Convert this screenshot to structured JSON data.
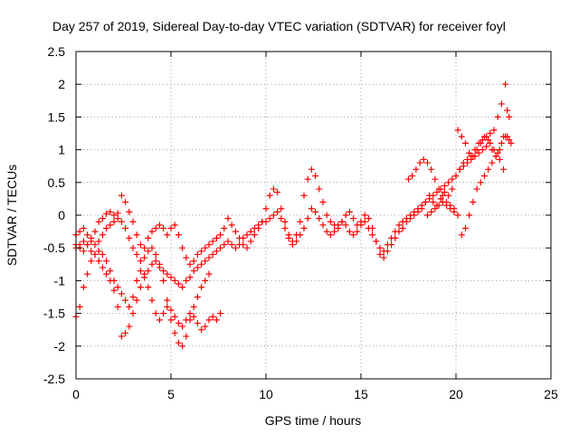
{
  "chart_data": {
    "type": "scatter",
    "title": "Day 257 of 2019, Sidereal Day-to-day VTEC variation (SDTVAR) for receiver foyl",
    "xlabel": "GPS time / hours",
    "ylabel": "SDTVAR / TECUs",
    "xlim": [
      0,
      25
    ],
    "ylim": [
      -2.5,
      2.5
    ],
    "xticks": [
      0,
      5,
      10,
      15,
      20,
      25
    ],
    "yticks": [
      -2.5,
      -2,
      -1.5,
      -1,
      -0.5,
      0,
      0.5,
      1,
      1.5,
      2,
      2.5
    ],
    "grid": true,
    "marker": "plus",
    "color": "#ff0000",
    "series": [
      {
        "x": [
          0.0,
          0.2,
          0.4,
          0.6,
          0.8,
          1.0,
          1.2,
          1.4,
          1.6,
          1.8,
          2.0,
          2.2,
          2.4,
          2.6,
          2.8,
          3.0,
          3.2,
          3.4,
          3.6,
          3.8,
          4.0,
          4.2,
          4.4,
          4.6,
          4.8,
          5.0,
          5.2,
          5.4,
          5.6,
          5.8,
          6.0,
          6.2,
          6.4,
          6.6,
          6.8,
          7.0,
          7.2,
          7.4,
          7.6,
          7.8,
          8.0,
          8.2,
          8.4,
          8.6,
          8.8,
          9.0,
          9.2,
          9.4,
          9.6,
          9.8,
          10.0,
          10.2,
          10.4,
          10.6,
          10.8,
          11.0,
          11.2,
          11.4,
          11.6,
          11.8,
          12.0,
          12.2,
          12.4,
          12.6,
          12.8,
          13.0,
          13.2,
          13.4,
          13.6,
          13.8,
          14.0,
          14.2,
          14.4,
          14.6,
          14.8,
          15.0,
          15.2,
          15.4,
          15.6,
          15.8,
          16.0,
          16.2,
          16.4,
          16.6,
          16.8,
          17.0,
          17.2,
          17.4,
          17.6,
          17.8,
          18.0,
          18.2,
          18.4,
          18.6,
          18.8,
          19.0,
          19.2,
          19.4,
          19.6,
          19.8,
          20.0,
          20.2,
          20.4,
          20.6,
          20.8,
          21.0,
          21.2,
          21.4,
          21.6,
          21.8,
          22.0,
          22.2,
          22.4,
          22.6,
          22.8
        ],
        "y": [
          -0.3,
          -0.25,
          -0.2,
          -0.3,
          -0.4,
          -0.25,
          -0.1,
          -0.05,
          0.02,
          0.05,
          0.0,
          0.03,
          0.3,
          0.2,
          0.05,
          -0.1,
          -0.3,
          -0.45,
          -0.5,
          -0.35,
          -0.25,
          -0.2,
          -0.15,
          -0.2,
          -0.3,
          -0.2,
          -0.15,
          -0.3,
          -0.5,
          -0.65,
          -0.75,
          -0.7,
          -0.6,
          -0.55,
          -0.5,
          -0.45,
          -0.4,
          -0.35,
          -0.3,
          -0.2,
          -0.05,
          -0.15,
          -0.25,
          -0.35,
          -0.45,
          -0.5,
          -0.4,
          -0.3,
          -0.2,
          -0.1,
          0.1,
          0.3,
          0.4,
          0.35,
          0.1,
          -0.1,
          -0.3,
          -0.4,
          -0.3,
          -0.1,
          0.3,
          0.55,
          0.7,
          0.6,
          0.4,
          0.2,
          0.0,
          -0.1,
          -0.15,
          -0.2,
          -0.1,
          0.0,
          0.05,
          -0.05,
          -0.15,
          -0.1,
          0.0,
          -0.05,
          -0.2,
          -0.4,
          -0.6,
          -0.65,
          -0.55,
          -0.45,
          -0.35,
          -0.25,
          -0.2,
          -0.1,
          -0.05,
          0.0,
          0.05,
          0.1,
          0.2,
          0.3,
          0.2,
          0.15,
          0.25,
          0.35,
          0.3,
          0.4,
          0.6,
          0.7,
          0.8,
          0.85,
          0.9,
          1.0,
          1.1,
          1.15,
          1.2,
          1.25,
          1.3,
          1.5,
          1.7,
          2.0,
          1.5
        ]
      },
      {
        "x": [
          0.0,
          0.2,
          0.4,
          0.6,
          0.8,
          1.0,
          1.2,
          1.4,
          1.6,
          1.8,
          2.0,
          2.2,
          2.4,
          2.6,
          2.8,
          3.0,
          3.2,
          3.4,
          3.6,
          3.8,
          4.0,
          4.2,
          4.4,
          4.6,
          4.8,
          5.0,
          5.2,
          5.4,
          5.6,
          5.8,
          6.0,
          6.2,
          6.4,
          6.6,
          6.8,
          7.0,
          7.2,
          7.4,
          7.6,
          7.8,
          8.0,
          8.2,
          8.4,
          8.6,
          8.8,
          9.0,
          9.2,
          9.4,
          9.6,
          9.8,
          10.0,
          10.2,
          10.4,
          10.6,
          10.8,
          11.0,
          11.2,
          11.4,
          11.6,
          11.8,
          12.0,
          12.2,
          12.4,
          12.6,
          12.8,
          13.0,
          13.2,
          13.4,
          13.6,
          13.8,
          14.0,
          14.2,
          14.4,
          14.6,
          14.8,
          15.0,
          15.2,
          15.4,
          15.6,
          15.8,
          16.0,
          16.2,
          16.4,
          16.6,
          16.8,
          17.0,
          17.2,
          17.4,
          17.6,
          17.8,
          18.0,
          18.2,
          18.4,
          18.6,
          18.8,
          19.0,
          19.2,
          19.4,
          19.6,
          19.8,
          20.0,
          20.2,
          20.4,
          20.6,
          20.8,
          21.0,
          21.2,
          21.4,
          21.6,
          21.8,
          22.0,
          22.2,
          22.4,
          22.6,
          22.8
        ],
        "y": [
          -0.45,
          -0.5,
          -0.55,
          -0.45,
          -0.35,
          -0.45,
          -0.4,
          -0.3,
          -0.2,
          -0.15,
          -0.1,
          -0.05,
          -0.1,
          -0.2,
          -0.35,
          -0.5,
          -0.6,
          -0.7,
          -0.65,
          -0.55,
          -0.5,
          -0.6,
          -0.75,
          -0.85,
          -0.9,
          -0.95,
          -1.0,
          -1.05,
          -1.1,
          -1.0,
          -0.95,
          -0.85,
          -0.8,
          -0.75,
          -0.7,
          -0.65,
          -0.6,
          -0.55,
          -0.5,
          -0.45,
          -0.4,
          -0.45,
          -0.5,
          -0.45,
          -0.35,
          -0.3,
          -0.25,
          -0.2,
          -0.15,
          -0.1,
          -0.1,
          -0.05,
          0.0,
          0.05,
          -0.05,
          -0.2,
          -0.35,
          -0.45,
          -0.4,
          -0.3,
          -0.2,
          -0.05,
          0.1,
          0.05,
          -0.05,
          -0.15,
          -0.25,
          -0.3,
          -0.25,
          -0.15,
          -0.1,
          -0.15,
          -0.25,
          -0.3,
          -0.25,
          -0.15,
          -0.1,
          -0.2,
          -0.3,
          -0.4,
          -0.5,
          -0.55,
          -0.45,
          -0.35,
          -0.25,
          -0.15,
          -0.1,
          -0.05,
          0.0,
          0.05,
          0.1,
          0.15,
          0.2,
          0.25,
          0.3,
          0.35,
          0.4,
          0.45,
          0.5,
          0.55,
          0.6,
          0.7,
          0.75,
          0.8,
          0.85,
          0.9,
          0.95,
          1.0,
          1.05,
          1.1,
          1.0,
          0.95,
          1.1,
          1.2,
          1.15
        ]
      },
      {
        "x": [
          0.0,
          0.2,
          0.4,
          0.6,
          0.8,
          1.0,
          1.2,
          1.4,
          1.6,
          1.8,
          2.0,
          2.2,
          2.4,
          2.6,
          2.8,
          3.0,
          3.2,
          3.4,
          3.6,
          3.8,
          4.0,
          4.2,
          4.4,
          4.6,
          4.8,
          5.0,
          5.2,
          5.4,
          5.6,
          5.8,
          6.0,
          6.2,
          6.4,
          6.6,
          6.8,
          7.0,
          7.2,
          7.4,
          7.6
        ],
        "y": [
          -1.55,
          -1.4,
          -1.1,
          -0.9,
          -0.7,
          -0.6,
          -0.55,
          -0.6,
          -0.7,
          -0.85,
          -1.0,
          -1.1,
          -1.2,
          -1.3,
          -1.4,
          -1.25,
          -1.0,
          -0.85,
          -0.9,
          -1.1,
          -1.3,
          -1.5,
          -1.6,
          -1.5,
          -1.4,
          -1.45,
          -1.55,
          -1.65,
          -1.7,
          -1.6,
          -1.5,
          -1.55,
          -1.65,
          -1.75,
          -1.7,
          -1.6,
          -1.55,
          -1.6,
          -1.5
        ]
      },
      {
        "x": [
          0.0,
          0.2,
          0.4,
          0.6,
          0.8,
          1.0,
          1.2,
          1.4,
          1.6,
          1.8,
          2.0,
          2.2,
          2.4,
          2.6,
          2.8,
          3.0,
          3.2,
          3.4,
          3.6,
          3.8,
          4.0,
          4.2,
          4.4,
          4.6,
          4.8,
          5.0,
          5.2,
          5.4,
          5.6,
          5.8,
          6.0,
          6.2,
          6.4,
          6.6,
          6.8,
          7.0
        ],
        "y": [
          -0.5,
          -0.45,
          -0.4,
          -0.45,
          -0.55,
          -0.6,
          -0.7,
          -0.8,
          -0.9,
          -1.0,
          -1.15,
          -1.4,
          -1.85,
          -1.8,
          -1.7,
          -1.5,
          -1.3,
          -1.1,
          -0.95,
          -0.85,
          -0.75,
          -0.7,
          -0.8,
          -1.0,
          -1.3,
          -1.6,
          -1.8,
          -1.95,
          -2.0,
          -1.85,
          -1.6,
          -1.4,
          -1.25,
          -1.1,
          -1.0,
          -0.9
        ]
      },
      {
        "x": [
          17.5,
          17.7,
          17.9,
          18.1,
          18.3,
          18.5,
          18.7,
          18.9,
          19.1,
          19.3,
          19.5,
          19.7,
          19.9,
          20.1,
          20.3,
          20.5,
          20.7,
          20.9,
          21.1,
          21.3,
          21.5,
          21.7,
          21.9,
          22.1,
          22.3,
          22.5,
          22.7,
          22.9
        ],
        "y": [
          0.55,
          0.6,
          0.7,
          0.8,
          0.85,
          0.8,
          0.7,
          0.55,
          0.4,
          0.3,
          0.2,
          0.15,
          0.1,
          1.3,
          1.2,
          1.1,
          0.95,
          0.9,
          1.0,
          1.1,
          1.2,
          1.15,
          1.0,
          0.9,
          0.85,
          0.7,
          1.2,
          1.1
        ]
      },
      {
        "x": [
          18.5,
          18.7,
          18.9,
          19.1,
          19.3,
          19.5,
          19.7,
          19.9,
          20.1,
          20.3,
          20.5,
          20.7,
          20.9,
          21.1,
          21.3,
          21.5,
          21.7,
          21.9,
          22.1,
          22.3,
          22.5,
          22.7
        ],
        "y": [
          0.0,
          0.05,
          0.1,
          0.15,
          0.2,
          0.15,
          0.1,
          0.05,
          0.0,
          -0.3,
          -0.2,
          0.0,
          0.2,
          0.4,
          0.5,
          0.6,
          0.7,
          0.8,
          0.9,
          1.0,
          1.2,
          1.6
        ]
      }
    ]
  }
}
